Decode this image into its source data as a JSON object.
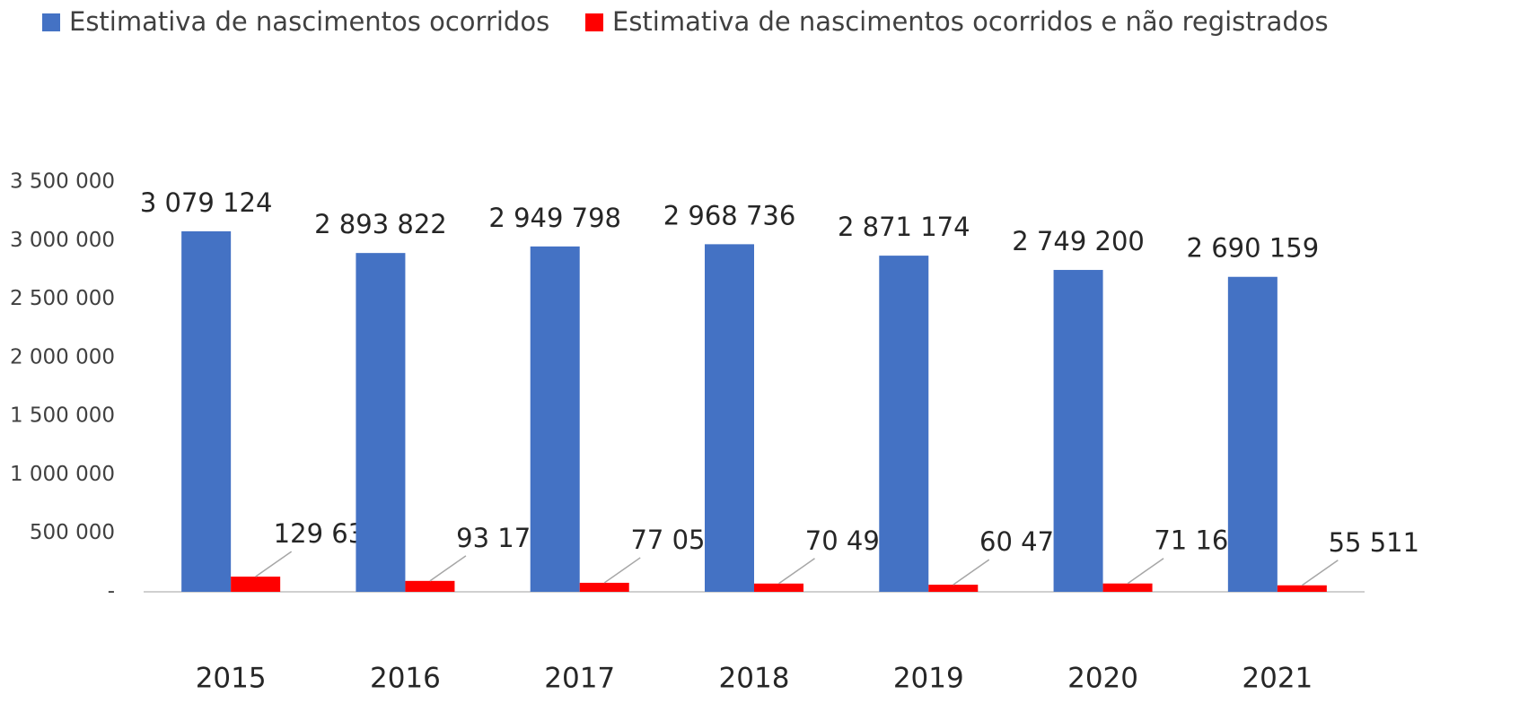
{
  "chart_data": {
    "type": "bar",
    "categories": [
      "2015",
      "2016",
      "2017",
      "2018",
      "2019",
      "2020",
      "2021"
    ],
    "series": [
      {
        "name": "Estimativa de nascimentos ocorridos",
        "color": "#4472c4",
        "values": [
          3079124,
          2893822,
          2949798,
          2968736,
          2871174,
          2749200,
          2690159
        ],
        "value_labels": [
          "3 079 124",
          "2 893 822",
          "2 949 798",
          "2 968 736",
          "2 871 174",
          "2 749 200",
          "2 690 159"
        ]
      },
      {
        "name": "Estimativa de nascimentos ocorridos e não registrados",
        "color": "#ff0000",
        "values": [
          129634,
          93178,
          77052,
          70496,
          60478,
          71160,
          55511
        ],
        "value_labels": [
          "129 634",
          "93 178",
          "77 052",
          "70 496",
          "60 478",
          "71 160",
          "55 511"
        ]
      }
    ],
    "ylim": [
      0,
      3500000
    ],
    "yticks": [
      {
        "value": 0,
        "label": "-"
      },
      {
        "value": 500000,
        "label": "500 000"
      },
      {
        "value": 1000000,
        "label": "1 000 000"
      },
      {
        "value": 1500000,
        "label": "1 500 000"
      },
      {
        "value": 2000000,
        "label": "2 000 000"
      },
      {
        "value": 2500000,
        "label": "2 500 000"
      },
      {
        "value": 3000000,
        "label": "3 000 000"
      },
      {
        "value": 3500000,
        "label": "3 500 000"
      }
    ],
    "grid": false,
    "legend": "top"
  }
}
